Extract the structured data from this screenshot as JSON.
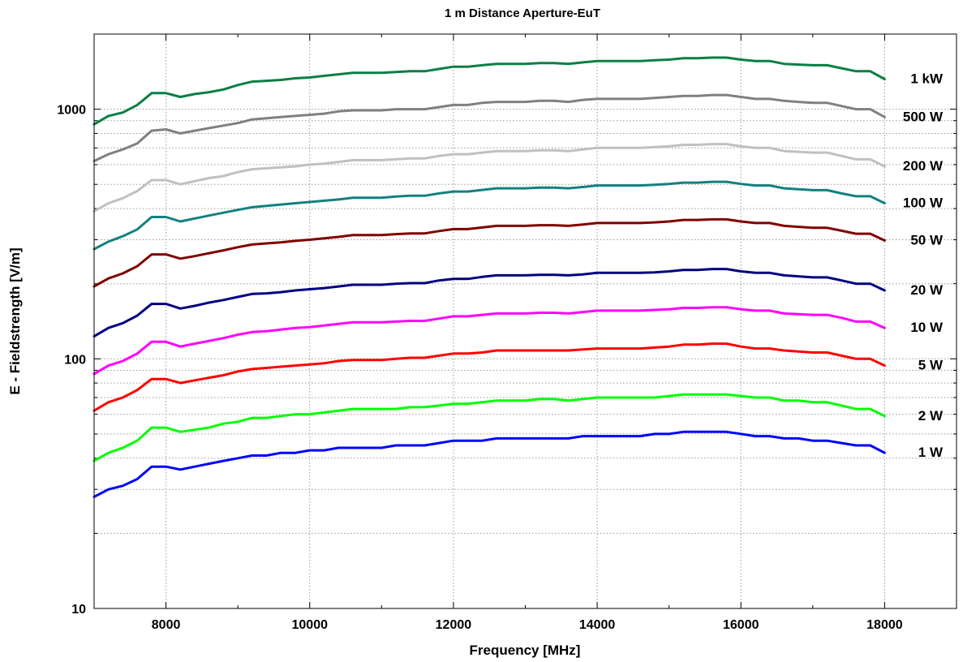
{
  "chart_data": {
    "type": "line",
    "title": "1 m Distance Aperture-EuT",
    "xlabel": "Frequency [MHz]",
    "ylabel": "E - Fieldstrength [V/m]",
    "xlim": [
      7000,
      19000
    ],
    "ylim": [
      10,
      2000
    ],
    "yscale": "log",
    "grid": true,
    "legend": "right-of-lines",
    "x_ticks": [
      8000,
      10000,
      12000,
      14000,
      16000,
      18000
    ],
    "x_tick_labels": [
      "8000",
      "10000",
      "12000",
      "14000",
      "16000",
      "18000"
    ],
    "y_tick_labels": [
      "10",
      "100",
      "1000"
    ],
    "y_tick_values": [
      10,
      100,
      1000
    ],
    "x": [
      7000,
      7200,
      7400,
      7600,
      7800,
      8000,
      8200,
      8400,
      8600,
      8800,
      9000,
      9200,
      9400,
      9600,
      9800,
      10000,
      10200,
      10400,
      10600,
      10800,
      11000,
      11200,
      11400,
      11600,
      11800,
      12000,
      12200,
      12400,
      12600,
      12800,
      13000,
      13200,
      13400,
      13600,
      13800,
      14000,
      14200,
      14400,
      14600,
      14800,
      15000,
      15200,
      15400,
      15600,
      15800,
      16000,
      16200,
      16400,
      16600,
      16800,
      17000,
      17200,
      17400,
      17600,
      17800,
      18000
    ],
    "series": [
      {
        "name": "1 kW",
        "color": "#0a7f45",
        "values": [
          870,
          940,
          970,
          1040,
          1160,
          1160,
          1120,
          1150,
          1170,
          1200,
          1250,
          1290,
          1300,
          1310,
          1330,
          1340,
          1360,
          1380,
          1400,
          1400,
          1400,
          1410,
          1420,
          1420,
          1450,
          1480,
          1480,
          1500,
          1520,
          1520,
          1520,
          1530,
          1530,
          1520,
          1540,
          1560,
          1560,
          1560,
          1560,
          1570,
          1580,
          1600,
          1600,
          1610,
          1610,
          1580,
          1560,
          1560,
          1520,
          1510,
          1500,
          1500,
          1460,
          1420,
          1420,
          1320
        ]
      },
      {
        "name": "500 W",
        "color": "#808080",
        "values": [
          620,
          660,
          690,
          730,
          820,
          830,
          800,
          820,
          840,
          860,
          880,
          910,
          920,
          930,
          940,
          950,
          960,
          980,
          990,
          990,
          990,
          1000,
          1000,
          1000,
          1020,
          1040,
          1040,
          1060,
          1070,
          1070,
          1070,
          1080,
          1080,
          1070,
          1090,
          1100,
          1100,
          1100,
          1100,
          1110,
          1120,
          1130,
          1130,
          1140,
          1140,
          1120,
          1100,
          1100,
          1080,
          1070,
          1060,
          1060,
          1030,
          1000,
          1000,
          930
        ]
      },
      {
        "name": "200 W",
        "color": "#c0c0c0",
        "values": [
          390,
          420,
          440,
          470,
          520,
          520,
          500,
          515,
          530,
          540,
          560,
          575,
          580,
          585,
          590,
          600,
          605,
          615,
          625,
          625,
          625,
          630,
          635,
          635,
          650,
          660,
          660,
          670,
          680,
          680,
          680,
          685,
          685,
          680,
          690,
          700,
          700,
          700,
          700,
          705,
          710,
          720,
          720,
          725,
          725,
          710,
          700,
          700,
          680,
          675,
          670,
          670,
          650,
          630,
          630,
          590
        ]
      },
      {
        "name": "100 W",
        "color": "#138080",
        "values": [
          275,
          295,
          310,
          330,
          370,
          370,
          355,
          365,
          375,
          385,
          395,
          405,
          410,
          415,
          420,
          425,
          430,
          435,
          442,
          442,
          442,
          447,
          450,
          450,
          460,
          468,
          468,
          475,
          482,
          482,
          482,
          485,
          485,
          482,
          488,
          495,
          495,
          495,
          495,
          498,
          502,
          508,
          508,
          512,
          512,
          502,
          495,
          495,
          482,
          478,
          474,
          474,
          460,
          448,
          448,
          420
        ]
      },
      {
        "name": "50 W",
        "color": "#800000",
        "values": [
          195,
          210,
          220,
          235,
          262,
          262,
          252,
          258,
          265,
          272,
          280,
          287,
          290,
          293,
          297,
          300,
          304,
          308,
          313,
          313,
          313,
          316,
          318,
          318,
          325,
          331,
          331,
          336,
          341,
          341,
          341,
          343,
          343,
          341,
          345,
          350,
          350,
          350,
          350,
          352,
          355,
          360,
          360,
          362,
          362,
          355,
          350,
          350,
          341,
          338,
          335,
          335,
          326,
          317,
          317,
          298
        ]
      },
      {
        "name": "20 W",
        "color": "#000080",
        "values": [
          123,
          133,
          139,
          149,
          166,
          166,
          159,
          163,
          168,
          172,
          177,
          182,
          183,
          185,
          188,
          190,
          192,
          195,
          198,
          198,
          198,
          200,
          201,
          201,
          206,
          209,
          209,
          213,
          216,
          216,
          216,
          217,
          217,
          216,
          218,
          221,
          221,
          221,
          221,
          222,
          224,
          227,
          227,
          229,
          229,
          224,
          221,
          221,
          216,
          214,
          212,
          212,
          206,
          200,
          200,
          188
        ]
      },
      {
        "name": "10 W",
        "color": "#ff00ff",
        "values": [
          87,
          94,
          98,
          105,
          117,
          117,
          112,
          115,
          118,
          121,
          125,
          128,
          129,
          131,
          133,
          134,
          136,
          138,
          140,
          140,
          140,
          141,
          142,
          142,
          145,
          148,
          148,
          150,
          152,
          152,
          152,
          153,
          153,
          152,
          154,
          156,
          156,
          156,
          156,
          157,
          158,
          160,
          160,
          161,
          161,
          158,
          156,
          156,
          152,
          151,
          150,
          150,
          146,
          141,
          141,
          133
        ]
      },
      {
        "name": "5 W",
        "color": "#ff0000",
        "values": [
          62,
          67,
          70,
          75,
          83,
          83,
          80,
          82,
          84,
          86,
          89,
          91,
          92,
          93,
          94,
          95,
          96,
          98,
          99,
          99,
          99,
          100,
          101,
          101,
          103,
          105,
          105,
          106,
          108,
          108,
          108,
          108,
          108,
          108,
          109,
          110,
          110,
          110,
          110,
          111,
          112,
          114,
          114,
          115,
          115,
          112,
          110,
          110,
          108,
          107,
          106,
          106,
          103,
          100,
          100,
          94
        ]
      },
      {
        "name": "2 W",
        "color": "#00ff00",
        "values": [
          39,
          42,
          44,
          47,
          53,
          53,
          51,
          52,
          53,
          55,
          56,
          58,
          58,
          59,
          60,
          60,
          61,
          62,
          63,
          63,
          63,
          63,
          64,
          64,
          65,
          66,
          66,
          67,
          68,
          68,
          68,
          69,
          69,
          68,
          69,
          70,
          70,
          70,
          70,
          70,
          71,
          72,
          72,
          72,
          72,
          71,
          70,
          70,
          68,
          68,
          67,
          67,
          65,
          63,
          63,
          59
        ]
      },
      {
        "name": "1 W",
        "color": "#0000ff",
        "values": [
          28,
          30,
          31,
          33,
          37,
          37,
          36,
          37,
          38,
          39,
          40,
          41,
          41,
          42,
          42,
          43,
          43,
          44,
          44,
          44,
          44,
          45,
          45,
          45,
          46,
          47,
          47,
          47,
          48,
          48,
          48,
          48,
          48,
          48,
          49,
          49,
          49,
          49,
          49,
          50,
          50,
          51,
          51,
          51,
          51,
          50,
          49,
          49,
          48,
          48,
          47,
          47,
          46,
          45,
          45,
          42
        ]
      }
    ]
  }
}
